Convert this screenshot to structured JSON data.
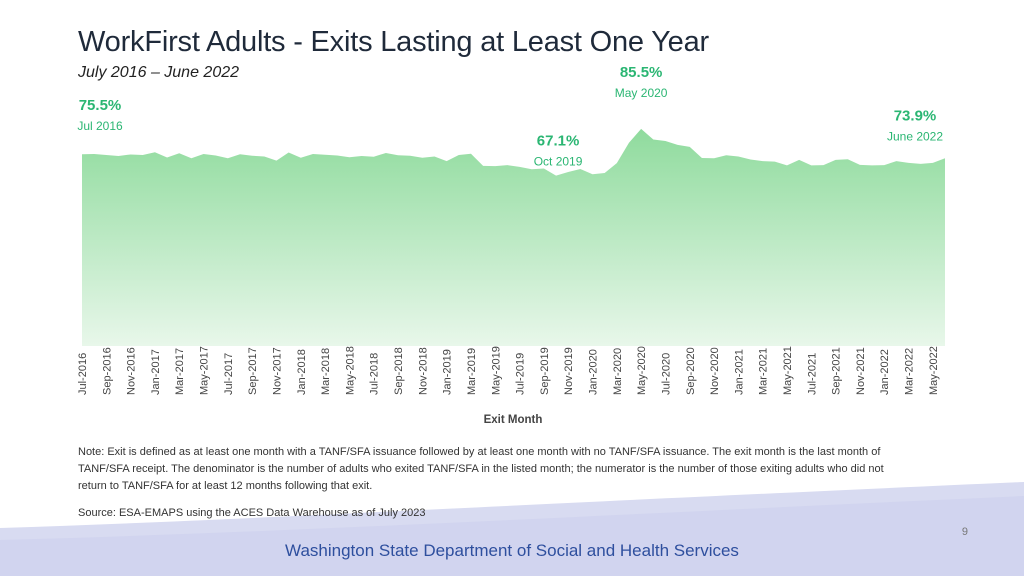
{
  "header": {
    "title": "WorkFirst Adults - Exits Lasting at Least One Year",
    "subtitle": "July 2016 – June 2022"
  },
  "chart_data": {
    "type": "area",
    "title": "",
    "xlabel": "Exit Month",
    "ylabel": "",
    "ylim": [
      0,
      100
    ],
    "grid": false,
    "color": "#8fdb9d",
    "tick_labels": [
      "Jul-2016",
      "Sep-2016",
      "Nov-2016",
      "Jan-2017",
      "Mar-2017",
      "May-2017",
      "Jul-2017",
      "Sep-2017",
      "Nov-2017",
      "Jan-2018",
      "Mar-2018",
      "May-2018",
      "Jul-2018",
      "Sep-2018",
      "Nov-2018",
      "Jan-2019",
      "Mar-2019",
      "May-2019",
      "Jul-2019",
      "Sep-2019",
      "Nov-2019",
      "Jan-2020",
      "Mar-2020",
      "May-2020",
      "Jul-2020",
      "Sep-2020",
      "Nov-2020",
      "Jan-2021",
      "Mar-2021",
      "May-2021",
      "Jul-2021",
      "Sep-2021",
      "Nov-2021",
      "Jan-2022",
      "Mar-2022",
      "May-2022"
    ],
    "x": [
      "Jul-2016",
      "Aug-2016",
      "Sep-2016",
      "Oct-2016",
      "Nov-2016",
      "Dec-2016",
      "Jan-2017",
      "Feb-2017",
      "Mar-2017",
      "Apr-2017",
      "May-2017",
      "Jun-2017",
      "Jul-2017",
      "Aug-2017",
      "Sep-2017",
      "Oct-2017",
      "Nov-2017",
      "Dec-2017",
      "Jan-2018",
      "Feb-2018",
      "Mar-2018",
      "Apr-2018",
      "May-2018",
      "Jun-2018",
      "Jul-2018",
      "Aug-2018",
      "Sep-2018",
      "Oct-2018",
      "Nov-2018",
      "Dec-2018",
      "Jan-2019",
      "Feb-2019",
      "Mar-2019",
      "Apr-2019",
      "May-2019",
      "Jun-2019",
      "Jul-2019",
      "Aug-2019",
      "Sep-2019",
      "Oct-2019",
      "Nov-2019",
      "Dec-2019",
      "Jan-2020",
      "Feb-2020",
      "Mar-2020",
      "Apr-2020",
      "May-2020",
      "Jun-2020",
      "Jul-2020",
      "Aug-2020",
      "Sep-2020",
      "Oct-2020",
      "Nov-2020",
      "Dec-2020",
      "Jan-2021",
      "Feb-2021",
      "Mar-2021",
      "Apr-2021",
      "May-2021",
      "Jun-2021",
      "Jul-2021",
      "Aug-2021",
      "Sep-2021",
      "Oct-2021",
      "Nov-2021",
      "Dec-2021",
      "Jan-2022",
      "Feb-2022",
      "Mar-2022",
      "Apr-2022",
      "May-2022",
      "Jun-2022"
    ],
    "series": [
      {
        "values": [
          75.5,
          75.6,
          75.2,
          74.8,
          75.4,
          75.2,
          76.3,
          74.2,
          75.9,
          73.9,
          75.6,
          75.0,
          73.9,
          75.5,
          74.9,
          74.6,
          73.0,
          76.2,
          74.1,
          75.6,
          75.3,
          75.0,
          74.3,
          74.8,
          74.5,
          76.0,
          75.1,
          74.9,
          74.1,
          74.6,
          72.8,
          75.2,
          75.7,
          70.9,
          70.8,
          71.2,
          70.5,
          69.6,
          69.9,
          67.1,
          68.5,
          69.7,
          67.6,
          68.1,
          72.0,
          80.0,
          85.5,
          81.3,
          80.7,
          79.2,
          78.4,
          74.0,
          73.9,
          75.1,
          74.6,
          73.4,
          72.8,
          72.6,
          71.1,
          73.3,
          71.1,
          71.2,
          73.3,
          73.5,
          71.3,
          71.1,
          71.2,
          72.8,
          72.1,
          71.7,
          72.1,
          73.9
        ]
      }
    ],
    "annotations": [
      {
        "value": "75.5%",
        "label": "Jul 2016",
        "index": 0
      },
      {
        "value": "67.1%",
        "label": "Oct 2019",
        "index": 39
      },
      {
        "value": "85.5%",
        "label": "May 2020",
        "index": 46
      },
      {
        "value": "73.9%",
        "label": "June 2022",
        "index": 71
      }
    ],
    "annotation_color": "#2bb673"
  },
  "note": "Note: Exit is defined as at least one month with a TANF/SFA issuance followed by at least one month with no TANF/SFA issuance. The exit month is the last month of TANF/SFA receipt. The denominator is the number of adults who exited TANF/SFA in the listed month; the numerator is the number of those exiting adults who did not return to TANF/SFA for at least 12 months following that exit.",
  "source": "Source: ESA-EMAPS using the ACES Data Warehouse as of July 2023",
  "footer": {
    "page_number": "9",
    "organization": "Washington State Department of Social and Health Services",
    "band_color": "#d6d9f0"
  }
}
